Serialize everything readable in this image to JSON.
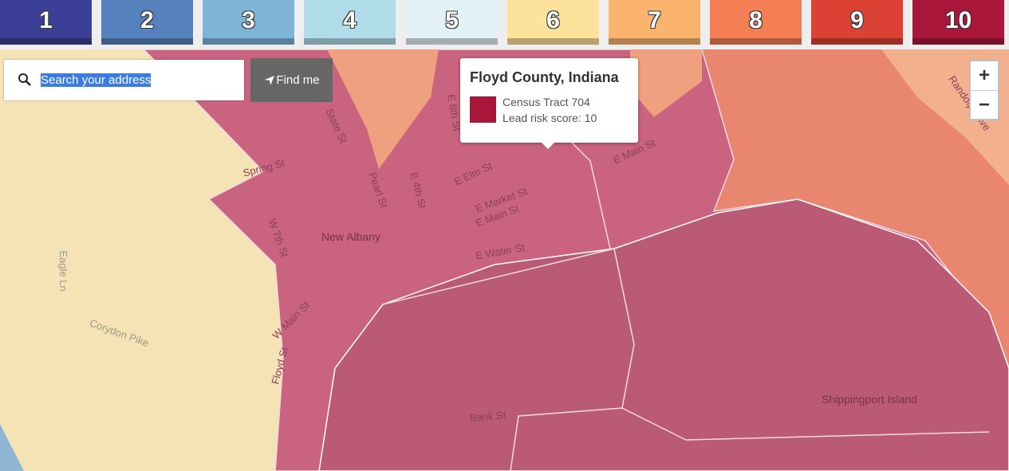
{
  "legend": {
    "items": [
      {
        "label": 1,
        "color": "#3b3f96"
      },
      {
        "label": 2,
        "color": "#5581bd"
      },
      {
        "label": 3,
        "color": "#7fb4d6"
      },
      {
        "label": 4,
        "color": "#b0dbe9"
      },
      {
        "label": 5,
        "color": "#e2f2f7"
      },
      {
        "label": 6,
        "color": "#fde29c"
      },
      {
        "label": 7,
        "color": "#fbb46e"
      },
      {
        "label": 8,
        "color": "#f57f55"
      },
      {
        "label": 9,
        "color": "#dc4234"
      },
      {
        "label": 10,
        "color": "#a8173a"
      }
    ]
  },
  "search": {
    "placeholder": "Search your address",
    "button": "Find me"
  },
  "popup": {
    "title": "Floyd County, Indiana",
    "swatch_color": "#a8173a",
    "lines": [
      "Census Tract 704",
      "Lead risk score: 10"
    ]
  },
  "zoom": {
    "in": "+",
    "out": "−"
  },
  "map_labels": [
    "State St",
    "Spring St",
    "Pearl St",
    "E 4th St",
    "E 8th St",
    "E Elm St",
    "E Main St",
    "E Market St",
    "E Main St",
    "New Albany",
    "W 7th St",
    "E Water St",
    "W Main St",
    "Eagle Ln",
    "Corydon Pike",
    "Floyd St",
    "Bank St",
    "Shippingport Island",
    "Randolph Ave"
  ]
}
